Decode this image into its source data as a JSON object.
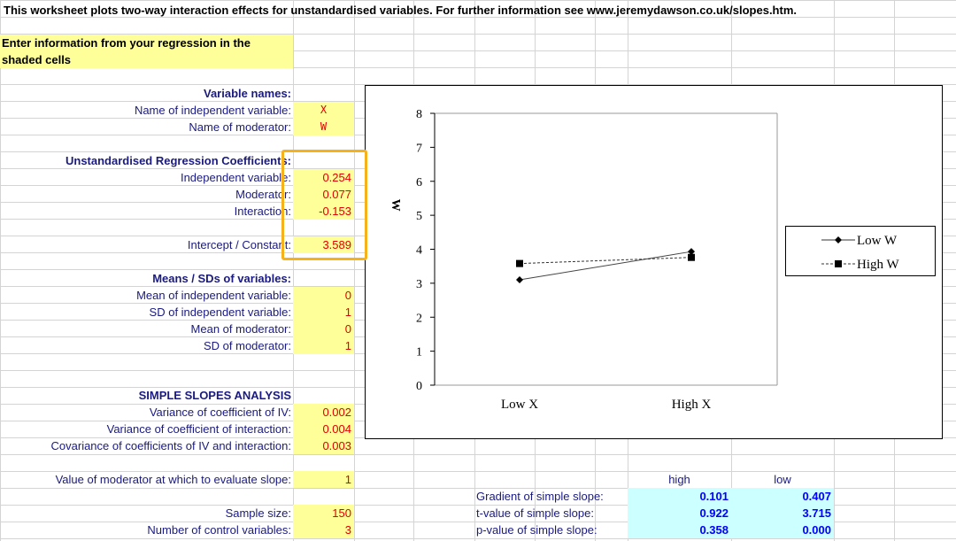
{
  "header": {
    "text": "This worksheet plots two-way interaction effects for unstandardised variables. For further information see www.jeremydawson.co.uk/slopes.htm."
  },
  "instruction": {
    "line1": "Enter information from your regression in the",
    "line2": "shaded cells"
  },
  "variable_names": {
    "heading": "Variable names:",
    "iv_label": "Name of independent variable:",
    "iv_value": "X",
    "mod_label": "Name of moderator:",
    "mod_value": "W"
  },
  "coefficients": {
    "heading": "Unstandardised Regression Coefficients:",
    "iv_label": "Independent variable:",
    "iv_value": "0.254",
    "mod_label": "Moderator:",
    "mod_value": "0.077",
    "int_label": "Interaction:",
    "int_value": "-0.153",
    "const_label": "Intercept / Constant:",
    "const_value": "3.589"
  },
  "means": {
    "heading": "Means / SDs of variables:",
    "iv_mean_label": "Mean of independent variable:",
    "iv_mean_value": "0",
    "iv_sd_label": "SD of independent variable:",
    "iv_sd_value": "1",
    "mod_mean_label": "Mean of moderator:",
    "mod_mean_value": "0",
    "mod_sd_label": "SD of moderator:",
    "mod_sd_value": "1"
  },
  "simple_slopes": {
    "heading": "SIMPLE SLOPES ANALYSIS",
    "var_iv_label": "Variance of coefficient of IV:",
    "var_iv_value": "0.002",
    "var_int_label": "Variance of coefficient of interaction:",
    "var_int_value": "0.004",
    "cov_label": "Covariance of coefficients of IV and interaction:",
    "cov_value": "0.003",
    "eval_label": "Value of moderator at which to evaluate slope:",
    "eval_value": "1",
    "n_label": "Sample size:",
    "n_value": "150",
    "controls_label": "Number of control variables:",
    "controls_value": "3"
  },
  "results": {
    "high_header": "high",
    "low_header": "low",
    "rows": [
      {
        "label": "Gradient of simple slope:",
        "high": "0.101",
        "low": "0.407"
      },
      {
        "label": "t-value of simple slope:",
        "high": "0.922",
        "low": "3.715"
      },
      {
        "label": "p-value of simple slope:",
        "high": "0.358",
        "low": "0.000"
      }
    ]
  },
  "chart_data": {
    "type": "line",
    "categories": [
      "Low X",
      "High X"
    ],
    "ylabel": "W",
    "ylim": [
      0,
      8
    ],
    "yticks": [
      "0",
      "1",
      "2",
      "3",
      "4",
      "5",
      "6",
      "7",
      "8"
    ],
    "series": [
      {
        "name": "Low W",
        "values": [
          3.1,
          3.93
        ],
        "style": "solid",
        "marker": "diamond"
      },
      {
        "name": "High W",
        "values": [
          3.58,
          3.76
        ],
        "style": "dashed",
        "marker": "square"
      }
    ],
    "legend_position": "right"
  }
}
